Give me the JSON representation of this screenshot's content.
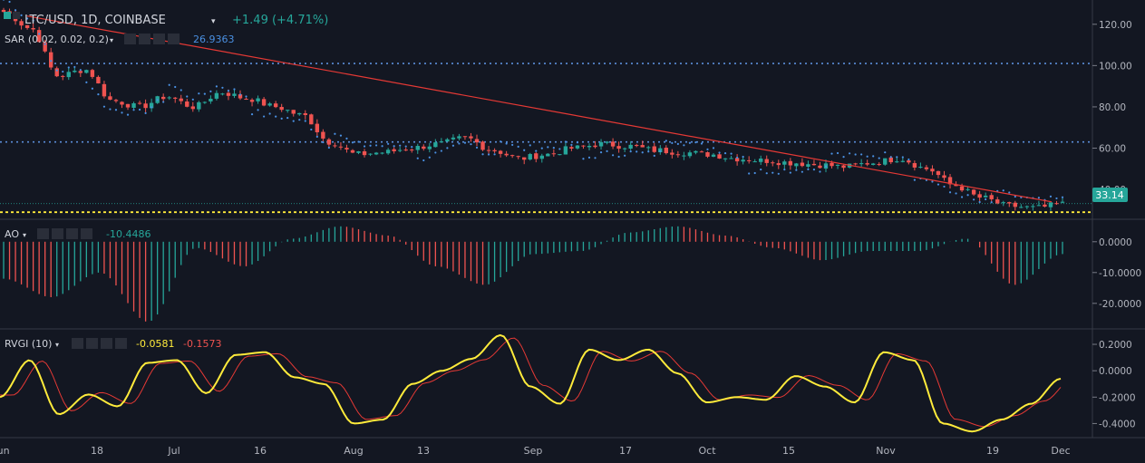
{
  "header": {
    "symbol": "LTC/USD, 1D, COINBASE",
    "change": "+1.49 (+4.71%)",
    "colors": {
      "text": "#d1d4dc",
      "change": "#26a69a"
    }
  },
  "price_pane": {
    "indicator_name": "SAR (0.02, 0.02, 0.2)",
    "indicator_value": "26.9363",
    "last_price_label": "33.14",
    "y_ticks": [
      "120.00",
      "100.00",
      "80.00",
      "60.00",
      "40.00"
    ],
    "ylim": [
      26,
      130
    ]
  },
  "ao_pane": {
    "indicator_name": "AO",
    "indicator_value": "-10.4486",
    "y_ticks": [
      "0.0000",
      "-10.0000",
      "-20.0000"
    ],
    "ylim": [
      -28,
      7
    ]
  },
  "rvgi_pane": {
    "indicator_name": "RVGI (10)",
    "value_main": "-0.0581",
    "value_signal": "-0.1573",
    "y_ticks": [
      "0.2000",
      "0.0000",
      "-0.2000",
      "-0.4000"
    ],
    "ylim": [
      -0.5,
      0.31
    ]
  },
  "x_axis": {
    "labels": [
      "Jun",
      "18",
      "Jul",
      "16",
      "Aug",
      "13",
      "Sep",
      "17",
      "Oct",
      "15",
      "Nov",
      "19",
      "Dec"
    ]
  },
  "colors": {
    "background": "#131722",
    "grid": "#2a2e39",
    "up": "#26a69a",
    "down": "#ef5350",
    "sar": "#4a90e2",
    "level_line": "#5b8dd9",
    "support_line": "#ffeb3b",
    "trendline": "#e53935",
    "rvgi_main": "#ffeb3b",
    "rvgi_signal": "#e53935",
    "ao_up": "#26a69a",
    "ao_down": "#ef5350",
    "price_label_bg": "#26a69a"
  },
  "chart_data": {
    "type": "candlestick",
    "x": [
      "Jun",
      "18",
      "Jul",
      "16",
      "Aug",
      "13",
      "Sep",
      "17",
      "Oct",
      "15",
      "Nov",
      "19",
      "Dec"
    ],
    "price_anchors": [
      126,
      118,
      95,
      98,
      83,
      80,
      85,
      80,
      87,
      84,
      80,
      76,
      63,
      57,
      58,
      60,
      62,
      65,
      59,
      55,
      57,
      60,
      62,
      61,
      59,
      58,
      57,
      55,
      54,
      53,
      52,
      51,
      53,
      55,
      50,
      42,
      36,
      32,
      31,
      33
    ],
    "horizontal_levels": [
      101,
      63
    ],
    "support_level": 29,
    "last_price": 33.14,
    "trendline": [
      [
        0,
        124
      ],
      [
        1,
        34
      ]
    ],
    "sar": {
      "value": 26.9363
    },
    "ao": {
      "ylim": [
        -28,
        7
      ]
    },
    "rvgi": {
      "main_anchors": [
        -0.2,
        0.08,
        -0.33,
        -0.18,
        -0.27,
        0.06,
        0.08,
        -0.17,
        0.12,
        0.14,
        -0.05,
        -0.1,
        -0.4,
        -0.37,
        -0.1,
        0.0,
        0.09,
        0.27,
        -0.12,
        -0.25,
        0.16,
        0.08,
        0.16,
        -0.02,
        -0.24,
        -0.2,
        -0.22,
        -0.04,
        -0.12,
        -0.24,
        0.14,
        0.08,
        -0.4,
        -0.46,
        -0.37,
        -0.25,
        -0.06
      ],
      "main_last": -0.0581,
      "signal_last": -0.1573
    }
  }
}
